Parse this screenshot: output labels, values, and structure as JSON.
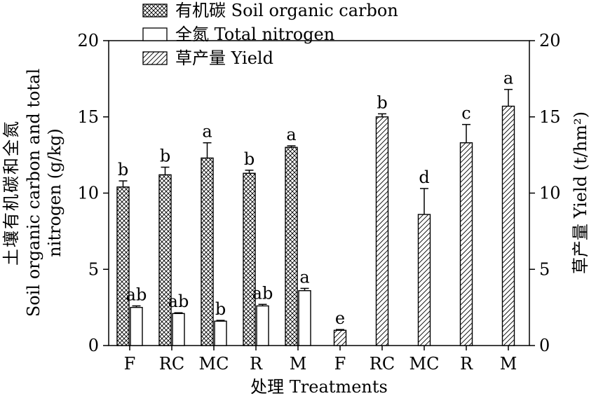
{
  "chart_data": {
    "type": "bar",
    "categories": [
      "F",
      "RC",
      "MC",
      "R",
      "M",
      "F",
      "RC",
      "MC",
      "R",
      "M"
    ],
    "xlabel": "处理 Treatments",
    "ylabel_left": [
      "土壤有机碳和全氮",
      "Soil organic carbon and total",
      "nitrogen (g/kg)"
    ],
    "ylabel_right": "草产量 Yield (t/hm²)",
    "ylim_left": [
      0,
      20
    ],
    "ylim_right": [
      0,
      20
    ],
    "yticks": [
      0,
      5,
      10,
      15,
      20
    ],
    "legend_position": "top-center",
    "series": [
      {
        "name": "有机碳 Soil organic carbon",
        "pattern": "crosshatch",
        "axis": "left",
        "values": [
          10.4,
          11.2,
          12.3,
          11.3,
          13.0,
          null,
          null,
          null,
          null,
          null
        ],
        "errors": [
          0.4,
          0.5,
          1.0,
          0.2,
          0.1,
          null,
          null,
          null,
          null,
          null
        ],
        "labels": [
          "b",
          "b",
          "a",
          "b",
          "a",
          null,
          null,
          null,
          null,
          null
        ]
      },
      {
        "name": "全氮 Total nitrogen",
        "pattern": "empty",
        "axis": "left",
        "values": [
          2.5,
          2.1,
          1.6,
          2.6,
          3.6,
          null,
          null,
          null,
          null,
          null
        ],
        "errors": [
          0.1,
          0.05,
          0.05,
          0.1,
          0.15,
          null,
          null,
          null,
          null,
          null
        ],
        "labels": [
          "ab",
          "ab",
          "b",
          "ab",
          "a",
          null,
          null,
          null,
          null,
          null
        ]
      },
      {
        "name": "草产量 Yield",
        "pattern": "diagonal",
        "axis": "right",
        "values": [
          null,
          null,
          null,
          null,
          null,
          1.0,
          15.0,
          8.6,
          13.3,
          15.7
        ],
        "errors": [
          null,
          null,
          null,
          null,
          null,
          0.05,
          0.2,
          1.7,
          1.2,
          1.1
        ],
        "labels": [
          null,
          null,
          null,
          null,
          null,
          "e",
          "b",
          "d",
          "c",
          "a"
        ]
      }
    ]
  }
}
